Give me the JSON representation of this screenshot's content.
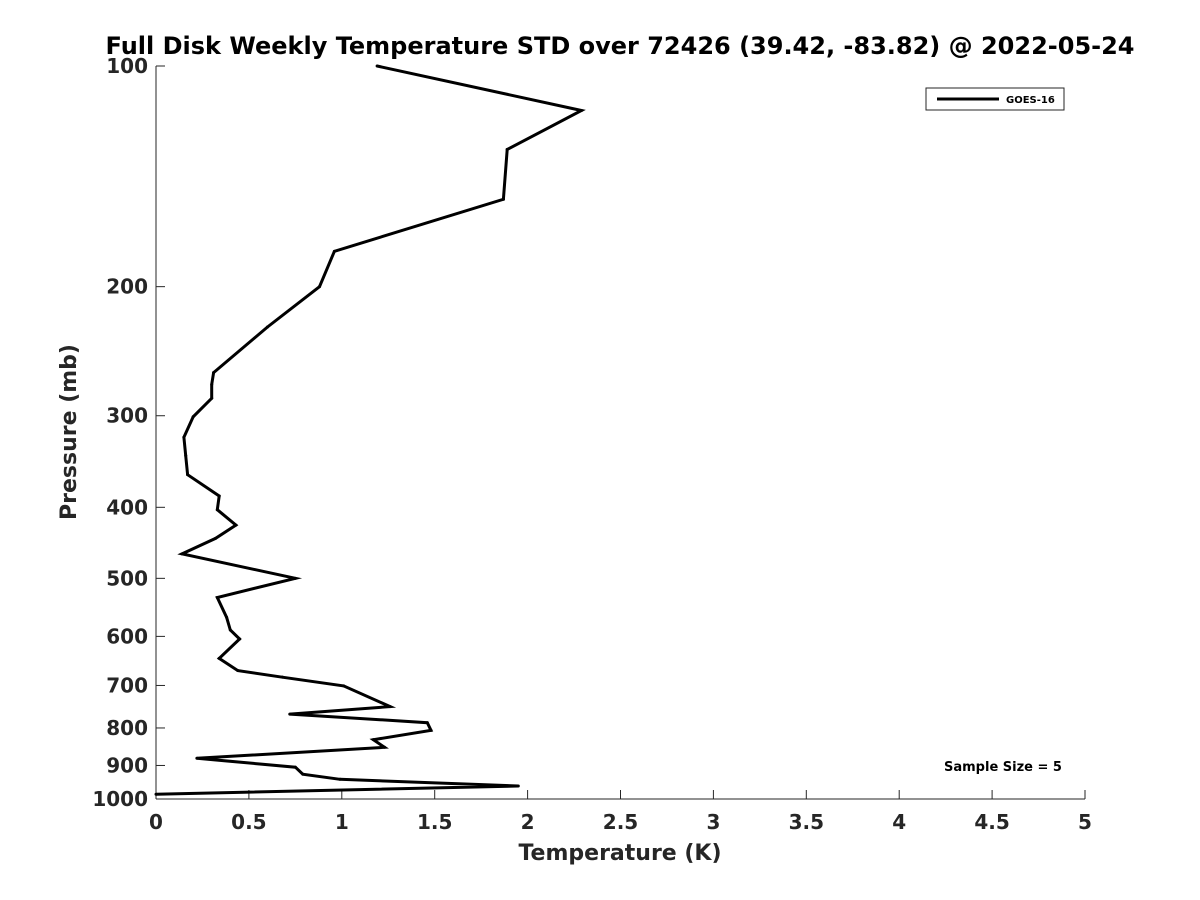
{
  "chart_data": {
    "type": "line",
    "title": "Full Disk Weekly Temperature STD over 72426 (39.42, -83.82) @ 2022-05-24",
    "xlabel": "Temperature (K)",
    "ylabel": "Pressure (mb)",
    "xlim": [
      0,
      5
    ],
    "ylim": [
      100,
      1000
    ],
    "y_scale": "log",
    "y_reversed": true,
    "xticks": [
      0,
      0.5,
      1,
      1.5,
      2,
      2.5,
      3,
      3.5,
      4,
      4.5,
      5
    ],
    "xtick_labels": [
      "0",
      "0.5",
      "1",
      "1.5",
      "2",
      "2.5",
      "3",
      "3.5",
      "4",
      "4.5",
      "5"
    ],
    "yticks": [
      100,
      200,
      300,
      400,
      500,
      600,
      700,
      800,
      900,
      1000
    ],
    "ytick_labels": [
      "100",
      "200",
      "300",
      "400",
      "500",
      "600",
      "700",
      "800",
      "900",
      "1000"
    ],
    "grid": false,
    "legend_position": "top-right",
    "annotation": "Sample Size = 5",
    "series": [
      {
        "name": "GOES-16",
        "color": "#000000",
        "points": [
          {
            "x": 1.19,
            "y": 100
          },
          {
            "x": 2.29,
            "y": 115
          },
          {
            "x": 1.89,
            "y": 130
          },
          {
            "x": 1.87,
            "y": 152
          },
          {
            "x": 0.96,
            "y": 179
          },
          {
            "x": 0.88,
            "y": 200
          },
          {
            "x": 0.6,
            "y": 227
          },
          {
            "x": 0.31,
            "y": 262
          },
          {
            "x": 0.3,
            "y": 272
          },
          {
            "x": 0.3,
            "y": 284
          },
          {
            "x": 0.2,
            "y": 301
          },
          {
            "x": 0.15,
            "y": 321
          },
          {
            "x": 0.16,
            "y": 340
          },
          {
            "x": 0.17,
            "y": 361
          },
          {
            "x": 0.34,
            "y": 386
          },
          {
            "x": 0.33,
            "y": 403
          },
          {
            "x": 0.43,
            "y": 423
          },
          {
            "x": 0.32,
            "y": 441
          },
          {
            "x": 0.14,
            "y": 463
          },
          {
            "x": 0.75,
            "y": 500
          },
          {
            "x": 0.33,
            "y": 531
          },
          {
            "x": 0.38,
            "y": 565
          },
          {
            "x": 0.4,
            "y": 588
          },
          {
            "x": 0.45,
            "y": 605
          },
          {
            "x": 0.34,
            "y": 643
          },
          {
            "x": 0.44,
            "y": 668
          },
          {
            "x": 0.68,
            "y": 682
          },
          {
            "x": 1.01,
            "y": 701
          },
          {
            "x": 1.26,
            "y": 748
          },
          {
            "x": 0.72,
            "y": 766
          },
          {
            "x": 1.46,
            "y": 787
          },
          {
            "x": 1.48,
            "y": 806
          },
          {
            "x": 1.17,
            "y": 830
          },
          {
            "x": 1.23,
            "y": 850
          },
          {
            "x": 0.22,
            "y": 880
          },
          {
            "x": 0.75,
            "y": 905
          },
          {
            "x": 0.79,
            "y": 925
          },
          {
            "x": 0.99,
            "y": 940
          },
          {
            "x": 1.95,
            "y": 960
          },
          {
            "x": 0.0,
            "y": 985
          }
        ]
      }
    ]
  }
}
